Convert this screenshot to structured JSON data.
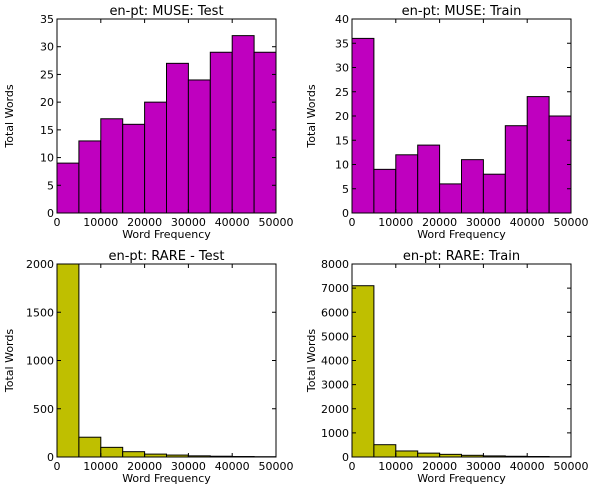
{
  "chart_data": [
    {
      "type": "bar",
      "title": "en-pt: MUSE: Test",
      "xlabel": "Word Frequency",
      "ylabel": "Total Words",
      "color": "#bf00bf",
      "xlim": [
        0,
        50000
      ],
      "ylim": [
        0,
        35
      ],
      "xticks": [
        0,
        10000,
        20000,
        30000,
        40000,
        50000
      ],
      "yticks": [
        0,
        5,
        10,
        15,
        20,
        25,
        30,
        35
      ],
      "bin_edges": [
        0,
        5000,
        10000,
        15000,
        20000,
        25000,
        30000,
        35000,
        40000,
        45000,
        50000
      ],
      "values": [
        9,
        13,
        17,
        16,
        20,
        27,
        24,
        29,
        32,
        29
      ]
    },
    {
      "type": "bar",
      "title": "en-pt: MUSE: Train",
      "xlabel": "Word Frequency",
      "ylabel": "Total Words",
      "color": "#bf00bf",
      "xlim": [
        0,
        50000
      ],
      "ylim": [
        0,
        40
      ],
      "xticks": [
        0,
        10000,
        20000,
        30000,
        40000,
        50000
      ],
      "yticks": [
        0,
        5,
        10,
        15,
        20,
        25,
        30,
        35,
        40
      ],
      "bin_edges": [
        0,
        5000,
        10000,
        15000,
        20000,
        25000,
        30000,
        35000,
        40000,
        45000,
        50000
      ],
      "values": [
        36,
        9,
        12,
        14,
        6,
        11,
        8,
        18,
        24,
        20
      ]
    },
    {
      "type": "bar",
      "title": "en-pt: RARE - Test",
      "xlabel": "Word Frequency",
      "ylabel": "Total Words",
      "color": "#bfbf00",
      "xlim": [
        0,
        50000
      ],
      "ylim": [
        0,
        2000
      ],
      "xticks": [
        0,
        10000,
        20000,
        30000,
        40000,
        50000
      ],
      "yticks": [
        0,
        500,
        1000,
        1500,
        2000
      ],
      "bin_edges": [
        0,
        5000,
        10000,
        15000,
        20000,
        25000,
        30000,
        35000,
        40000,
        45000,
        50000
      ],
      "values": [
        2000,
        205,
        100,
        55,
        30,
        20,
        12,
        8,
        5,
        3
      ]
    },
    {
      "type": "bar",
      "title": "en-pt: RARE:  Train",
      "xlabel": "Word Frequency",
      "ylabel": "Total Words",
      "color": "#bfbf00",
      "xlim": [
        0,
        50000
      ],
      "ylim": [
        0,
        8000
      ],
      "xticks": [
        0,
        10000,
        20000,
        30000,
        40000,
        50000
      ],
      "yticks": [
        0,
        1000,
        2000,
        3000,
        4000,
        5000,
        6000,
        7000,
        8000
      ],
      "bin_edges": [
        0,
        5000,
        10000,
        15000,
        20000,
        25000,
        30000,
        35000,
        40000,
        45000,
        50000
      ],
      "values": [
        7100,
        510,
        250,
        160,
        110,
        70,
        45,
        30,
        20,
        10
      ]
    }
  ]
}
